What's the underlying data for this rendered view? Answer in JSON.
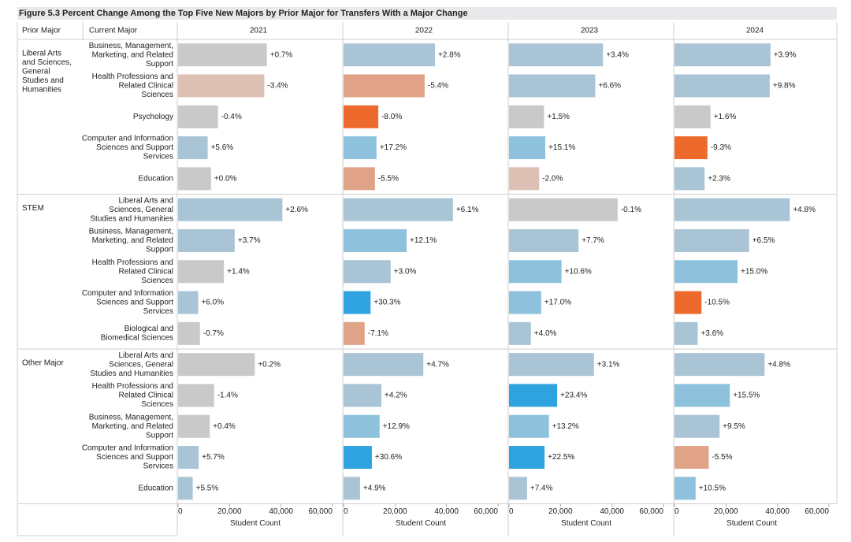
{
  "title": "Figure 5.3 Percent Change Among the Top Five New Majors by Prior Major for Transfers With a Major Change",
  "chart_data": {
    "type": "bar",
    "orientation": "horizontal",
    "row_header_prior": "Prior Major",
    "row_header_current": "Current Major",
    "panels": [
      "2021",
      "2022",
      "2023",
      "2024"
    ],
    "xlabel": "Student Count",
    "xlim": [
      0,
      60000
    ],
    "x_ticks": [
      "0",
      "20,000",
      "40,000",
      "60,000"
    ],
    "colors": {
      "neutral": "#c9c9c9",
      "pos_light": "#a9c4d5",
      "pos_mid": "#8ec1dc",
      "pos_strong": "#2ea3df",
      "neg_light": "#dcc0b4",
      "neg_mid": "#e0a388",
      "neg_strong": "#ee6a2c"
    },
    "groups": [
      {
        "prior": "Liberal Arts and Sciences, General Studies and Humanities",
        "rows": [
          {
            "current": "Business, Management, Marketing, and Related Support",
            "values": [
              34500,
              35500,
              36500,
              37300
            ],
            "labels": [
              "+0.7%",
              "+2.8%",
              "+3.4%",
              "+3.9%"
            ],
            "pct": [
              0.7,
              2.8,
              3.4,
              3.9
            ]
          },
          {
            "current": "Health Professions and Related Clinical Sciences",
            "values": [
              33500,
              31500,
              33500,
              37000
            ],
            "labels": [
              "-3.4%",
              "-5.4%",
              "+6.6%",
              "+9.8%"
            ],
            "pct": [
              -3.4,
              -5.4,
              6.6,
              9.8
            ]
          },
          {
            "current": "Psychology",
            "values": [
              15500,
              13500,
              13600,
              14000
            ],
            "labels": [
              "-0.4%",
              "-8.0%",
              "+1.5%",
              "+1.6%"
            ],
            "pct": [
              -0.4,
              -8.0,
              1.5,
              1.6
            ]
          },
          {
            "current": "Computer and Information Sciences and Support Services",
            "values": [
              11500,
              12800,
              14100,
              12800
            ],
            "labels": [
              "+5.6%",
              "+17.2%",
              "+15.1%",
              "-9.3%"
            ],
            "pct": [
              5.6,
              17.2,
              15.1,
              -9.3
            ]
          },
          {
            "current": "Education",
            "values": [
              12800,
              12200,
              11700,
              11700
            ],
            "labels": [
              "+0.0%",
              "-5.5%",
              "-2.0%",
              "+2.3%"
            ],
            "pct": [
              0.0,
              -5.5,
              -2.0,
              2.3
            ]
          }
        ]
      },
      {
        "prior": "STEM",
        "rows": [
          {
            "current": "Liberal Arts and Sciences, General Studies and Humanities",
            "values": [
              40500,
              42500,
              42200,
              44800
            ],
            "labels": [
              "+2.6%",
              "+6.1%",
              "-0.1%",
              "+4.8%"
            ],
            "pct": [
              2.6,
              6.1,
              -0.1,
              4.8
            ]
          },
          {
            "current": "Business, Management, Marketing, and Related Support",
            "values": [
              22000,
              24500,
              27000,
              29000
            ],
            "labels": [
              "+3.7%",
              "+12.1%",
              "+7.7%",
              "+6.5%"
            ],
            "pct": [
              3.7,
              12.1,
              7.7,
              6.5
            ]
          },
          {
            "current": "Health Professions and Related Clinical Sciences",
            "values": [
              17800,
              18300,
              20400,
              24500
            ],
            "labels": [
              "+1.4%",
              "+3.0%",
              "+10.6%",
              "+15.0%"
            ],
            "pct": [
              1.4,
              3.0,
              10.6,
              15.0
            ]
          },
          {
            "current": "Computer and Information Sciences and Support Services",
            "values": [
              7800,
              10500,
              12500,
              10500
            ],
            "labels": [
              "+6.0%",
              "+30.3%",
              "+17.0%",
              "-10.5%"
            ],
            "pct": [
              6.0,
              30.3,
              17.0,
              -10.5
            ]
          },
          {
            "current": "Biological and Biomedical Sciences",
            "values": [
              8500,
              8200,
              8500,
              9000
            ],
            "labels": [
              "-0.7%",
              "-7.1%",
              "+4.0%",
              "+3.6%"
            ],
            "pct": [
              -0.7,
              -7.1,
              4.0,
              3.6
            ]
          }
        ]
      },
      {
        "prior": "Other Major",
        "rows": [
          {
            "current": "Liberal Arts and Sciences, General Studies and Humanities",
            "values": [
              29800,
              31000,
              33000,
              35000
            ],
            "labels": [
              "+0.2%",
              "+4.7%",
              "+3.1%",
              "+4.8%"
            ],
            "pct": [
              0.2,
              4.7,
              3.1,
              4.8
            ]
          },
          {
            "current": "Health Professions and Related Clinical Sciences",
            "values": [
              14000,
              14700,
              18700,
              21500
            ],
            "labels": [
              "-1.4%",
              "+4.2%",
              "+23.4%",
              "+15.5%"
            ],
            "pct": [
              -1.4,
              4.2,
              23.4,
              15.5
            ]
          },
          {
            "current": "Business, Management, Marketing, and Related Support",
            "values": [
              12300,
              14000,
              15500,
              17500
            ],
            "labels": [
              "+0.4%",
              "+12.9%",
              "+13.2%",
              "+9.5%"
            ],
            "pct": [
              0.4,
              12.9,
              13.2,
              9.5
            ]
          },
          {
            "current": "Computer and Information Sciences and Support Services",
            "values": [
              8000,
              11000,
              13800,
              13300
            ],
            "labels": [
              "+5.7%",
              "+30.6%",
              "+22.5%",
              "-5.5%"
            ],
            "pct": [
              5.7,
              30.6,
              22.5,
              -5.5
            ]
          },
          {
            "current": "Education",
            "values": [
              5700,
              6400,
              7000,
              8200
            ],
            "labels": [
              "+5.5%",
              "+4.9%",
              "+7.4%",
              "+10.5%"
            ],
            "pct": [
              5.5,
              4.9,
              7.4,
              10.5
            ]
          }
        ]
      }
    ]
  }
}
